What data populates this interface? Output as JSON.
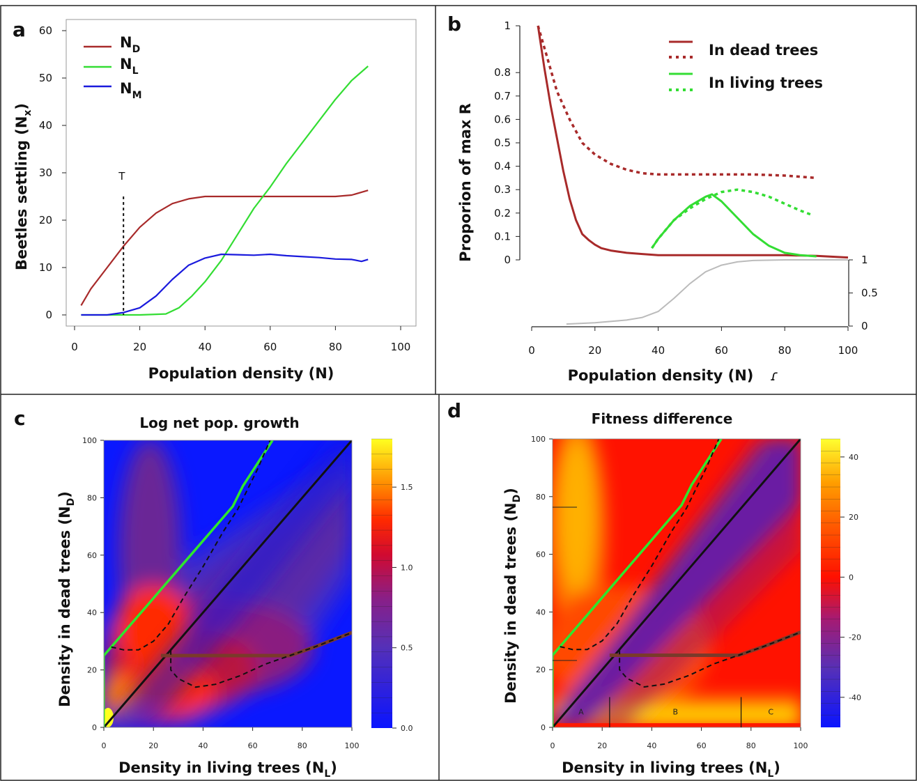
{
  "colors": {
    "dead": "#a82a2a",
    "living": "#33dd33",
    "mixed": "#1a1add",
    "gray": "#bbbbbb",
    "green_line": "#2ee82e",
    "brown_line": "#7a3a2a"
  },
  "chart_data": [
    {
      "panel": "a",
      "type": "line",
      "ylabel": "Beetles settling (Nx)",
      "ylabel_main": "Beetles settling (N",
      "ylabel_sub": "x",
      "xlabel": "Population density (N)",
      "xlim": [
        0,
        100
      ],
      "ylim": [
        0,
        60
      ],
      "xticks": [
        "0",
        "20",
        "40",
        "60",
        "80",
        "100"
      ],
      "yticks": [
        "0",
        "10",
        "20",
        "30",
        "40",
        "50",
        "60"
      ],
      "annotation": {
        "text": "T",
        "x": 15
      },
      "legend": [
        {
          "main": "N",
          "sub": "D"
        },
        {
          "main": "N",
          "sub": "L"
        },
        {
          "main": "N",
          "sub": "M"
        }
      ],
      "series": [
        {
          "name": "ND",
          "color": "dead",
          "x": [
            2,
            5,
            10,
            15,
            20,
            25,
            30,
            35,
            40,
            45,
            50,
            60,
            70,
            80,
            85,
            90
          ],
          "values": [
            2,
            5.5,
            10,
            14.5,
            18.5,
            21.5,
            23.5,
            24.5,
            25,
            25,
            25,
            25,
            25,
            25,
            25.3,
            26.3
          ]
        },
        {
          "name": "NL",
          "color": "living",
          "x": [
            2,
            10,
            20,
            28,
            32,
            36,
            40,
            45,
            50,
            55,
            60,
            65,
            70,
            75,
            80,
            85,
            90
          ],
          "values": [
            0,
            0,
            0,
            0.2,
            1.5,
            4,
            7,
            11.5,
            17,
            22.5,
            27,
            32,
            36.5,
            41,
            45.5,
            49.5,
            52.5
          ]
        },
        {
          "name": "NM",
          "color": "mixed",
          "x": [
            2,
            10,
            15,
            20,
            25,
            30,
            35,
            40,
            45,
            50,
            55,
            60,
            65,
            70,
            75,
            80,
            85,
            88,
            90
          ],
          "values": [
            0,
            0,
            0.5,
            1.5,
            4,
            7.5,
            10.5,
            12,
            12.8,
            12.7,
            12.6,
            12.8,
            12.5,
            12.3,
            12.1,
            11.8,
            11.7,
            11.3,
            11.7
          ]
        }
      ]
    },
    {
      "panel": "b",
      "type": "line",
      "ylabel": "Proporion of max R",
      "xlabel": "Population density (N)",
      "xlim": [
        0,
        100
      ],
      "ylim": [
        0,
        1
      ],
      "xticks": [
        "0",
        "20",
        "40",
        "60",
        "80",
        "100"
      ],
      "yticks": [
        "0",
        "0.1",
        "0.2",
        "0.3",
        "0.4",
        "0.5",
        "0.6",
        "0.7",
        "0.8",
        "1"
      ],
      "ytick_values": [
        0,
        0.1,
        0.2,
        0.3,
        0.4,
        0.5,
        0.6,
        0.7,
        0.8,
        1
      ],
      "secondary_yticks": [
        "0",
        "0.5",
        "1"
      ],
      "legend": [
        "In dead trees",
        "In living trees"
      ],
      "series": [
        {
          "name": "In dead trees",
          "style": "solid",
          "color": "dead",
          "x": [
            2,
            4,
            6,
            8,
            10,
            12,
            14,
            16,
            18,
            20,
            22,
            25,
            30,
            35,
            40,
            50,
            60,
            70,
            80,
            90,
            100
          ],
          "values": [
            1.0,
            0.82,
            0.66,
            0.52,
            0.38,
            0.26,
            0.17,
            0.11,
            0.085,
            0.065,
            0.05,
            0.04,
            0.03,
            0.025,
            0.02,
            0.02,
            0.02,
            0.02,
            0.02,
            0.017,
            0.01
          ]
        },
        {
          "name": "In dead trees",
          "style": "dotted",
          "color": "dead",
          "x": [
            2,
            5,
            8,
            12,
            16,
            20,
            25,
            30,
            35,
            40,
            50,
            60,
            70,
            80,
            90
          ],
          "values": [
            1.0,
            0.86,
            0.72,
            0.6,
            0.5,
            0.45,
            0.41,
            0.385,
            0.37,
            0.365,
            0.365,
            0.365,
            0.365,
            0.36,
            0.35
          ]
        },
        {
          "name": "In living trees",
          "style": "solid",
          "color": "living",
          "x": [
            38,
            40,
            45,
            50,
            55,
            57,
            60,
            65,
            70,
            75,
            80,
            85,
            90
          ],
          "values": [
            0.05,
            0.09,
            0.17,
            0.23,
            0.27,
            0.28,
            0.25,
            0.18,
            0.11,
            0.06,
            0.03,
            0.02,
            0.015
          ]
        },
        {
          "name": "In living trees",
          "style": "dotted",
          "color": "living",
          "x": [
            38,
            40,
            45,
            50,
            55,
            60,
            65,
            70,
            75,
            80,
            85,
            89
          ],
          "values": [
            0.05,
            0.09,
            0.17,
            0.22,
            0.26,
            0.29,
            0.3,
            0.29,
            0.27,
            0.24,
            0.21,
            0.19
          ]
        },
        {
          "name": "",
          "style": "solid",
          "color": "gray",
          "axis": "secondary",
          "x": [
            11,
            20,
            30,
            35,
            40,
            45,
            50,
            55,
            60,
            65,
            70,
            80,
            90,
            100
          ],
          "values": [
            0.03,
            0.05,
            0.09,
            0.13,
            0.22,
            0.42,
            0.64,
            0.82,
            0.92,
            0.97,
            0.99,
            1,
            1,
            1
          ]
        }
      ]
    },
    {
      "panel": "c",
      "type": "heatmap",
      "title": "Log net pop. growth",
      "xlabel": "Density in living trees (NL)",
      "xlabel_main": "Density in living trees (N",
      "xlabel_sub": "L",
      "ylabel": "Density in dead trees (ND)",
      "ylabel_main": "Density in dead trees (N",
      "ylabel_sub": "D",
      "xlim": [
        0,
        100
      ],
      "ylim": [
        0,
        100
      ],
      "xticks": [
        "0",
        "20",
        "40",
        "60",
        "80",
        "100"
      ],
      "yticks": [
        "0",
        "20",
        "40",
        "60",
        "80",
        "100"
      ],
      "colorbar": {
        "min": 0.0,
        "max": 1.8,
        "ticks": [
          "0.0",
          "0.5",
          "1.0",
          "1.5"
        ],
        "tick_values": [
          0,
          0.5,
          1.0,
          1.5
        ]
      }
    },
    {
      "panel": "d",
      "type": "heatmap",
      "title": "Fitness difference",
      "xlabel": "Density in living trees (NL)",
      "xlabel_main": "Density in living trees (N",
      "xlabel_sub": "L",
      "ylabel": "Density in dead trees (ND)",
      "ylabel_main": "Density in dead trees (N",
      "ylabel_sub": "D",
      "xlim": [
        0,
        100
      ],
      "ylim": [
        0,
        100
      ],
      "xticks": [
        "0",
        "20",
        "40",
        "60",
        "80",
        "100"
      ],
      "yticks": [
        "0",
        "20",
        "40",
        "60",
        "80",
        "100"
      ],
      "regions": [
        "A",
        "B",
        "C"
      ],
      "region_bounds": [
        0,
        23,
        76,
        100
      ],
      "colorbar": {
        "min": -50,
        "max": 46,
        "ticks": [
          "40",
          "20",
          "0",
          "-20",
          "-40"
        ],
        "tick_values": [
          40,
          20,
          0,
          -20,
          -40
        ]
      }
    }
  ]
}
